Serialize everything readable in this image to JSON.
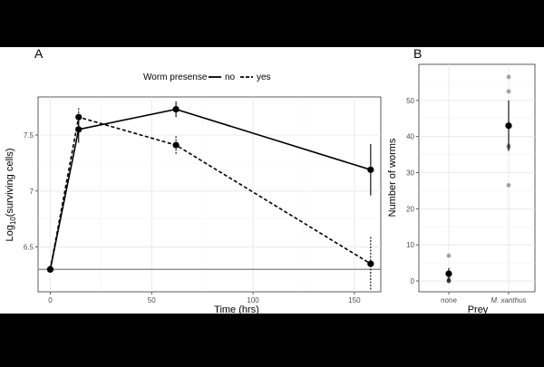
{
  "chart_data": [
    {
      "panel_label": "A",
      "type": "line",
      "xlabel": "Time (hrs)",
      "ylabel_main": "Log",
      "ylabel_sub": "10",
      "ylabel_rest": "(surviving cells)",
      "xlim": [
        -6,
        163
      ],
      "ylim": [
        6.1,
        7.84
      ],
      "x_ticks": [
        0,
        50,
        100,
        150
      ],
      "y_ticks": [
        6.5,
        7.0,
        7.5
      ],
      "grid": true,
      "reference_line": 6.3,
      "legend": {
        "title": "Worm presense",
        "position": "top",
        "entries": [
          {
            "label": "no",
            "style": "solid"
          },
          {
            "label": "yes",
            "style": "dashed"
          }
        ]
      },
      "series": [
        {
          "name": "no",
          "style": "solid",
          "x": [
            0,
            14,
            62,
            158
          ],
          "y": [
            6.3,
            7.55,
            7.73,
            7.19
          ],
          "err": [
            0,
            0.12,
            0.07,
            0.23
          ]
        },
        {
          "name": "yes",
          "style": "dashed",
          "x": [
            0,
            14,
            62,
            158
          ],
          "y": [
            6.3,
            7.66,
            7.41,
            6.35
          ],
          "err": [
            0,
            0.08,
            0.08,
            0.24
          ]
        }
      ]
    },
    {
      "panel_label": "B",
      "type": "scatter",
      "xlabel": "Prey",
      "ylabel": "Number of worms",
      "categories": [
        "none",
        "M. xanthus"
      ],
      "category_italic": [
        false,
        true
      ],
      "ylim": [
        -3,
        60
      ],
      "y_ticks": [
        0,
        10,
        20,
        30,
        40,
        50
      ],
      "grid": true,
      "groups": [
        {
          "category": "none",
          "mean": 2,
          "err": 1.6,
          "points": [
            0,
            0,
            0,
            0.5,
            2.3,
            7
          ]
        },
        {
          "category": "M. xanthus",
          "mean": 43,
          "err": 7,
          "points": [
            56.5,
            52.5,
            37.5,
            37,
            26.5
          ]
        }
      ]
    }
  ]
}
